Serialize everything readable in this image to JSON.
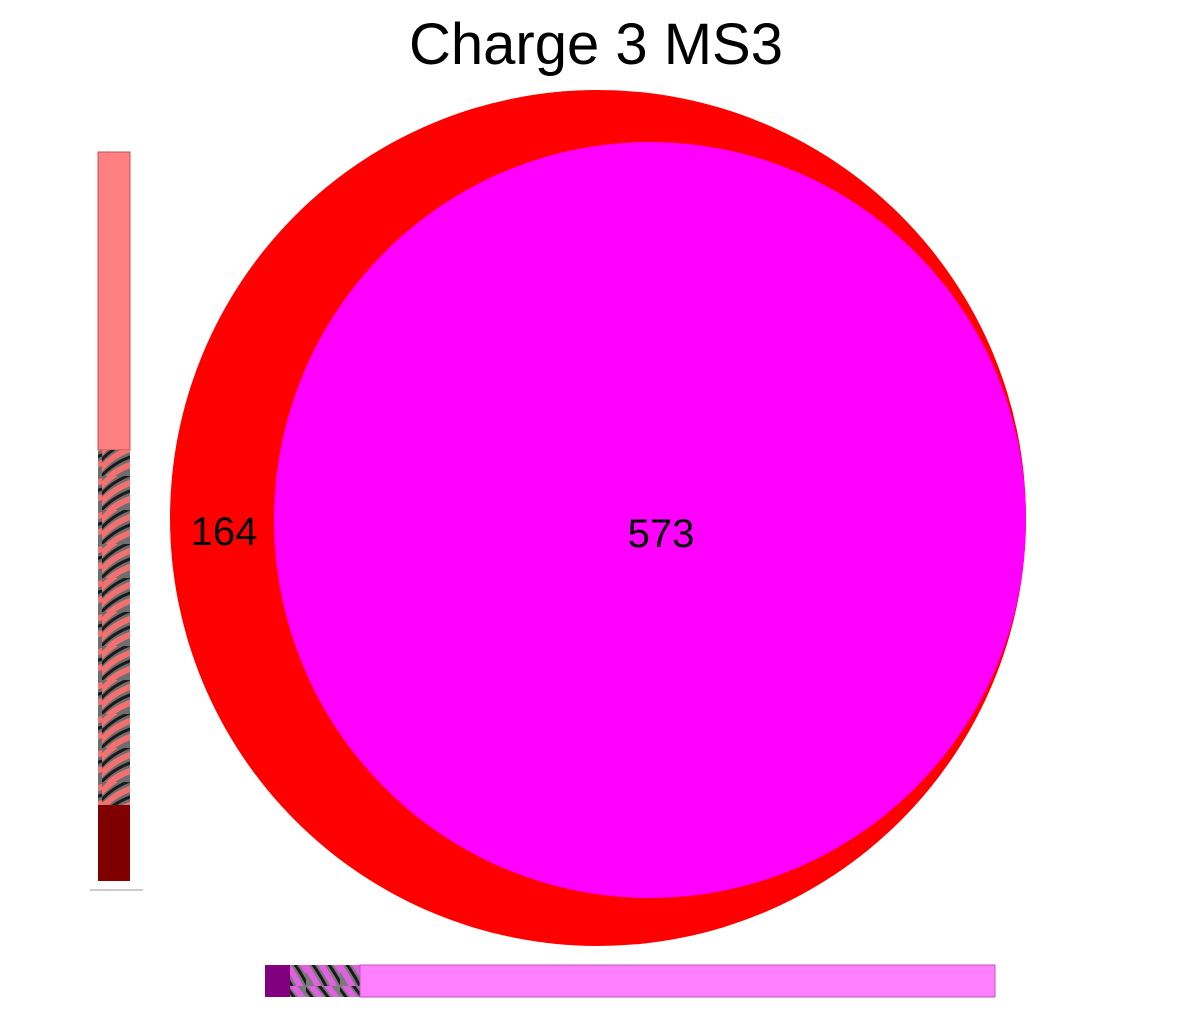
{
  "title": "Charge 3 MS3",
  "venn": {
    "only_outer_count": "164",
    "overlap_count": "573",
    "colors": {
      "outer_set": "#ff0000",
      "inner_set": "#ff00ff",
      "bar_top": "#ff8080",
      "bar_bottom": "#800000",
      "hbar_left": "#800080",
      "hbar_main": "#ff80ff"
    }
  }
}
